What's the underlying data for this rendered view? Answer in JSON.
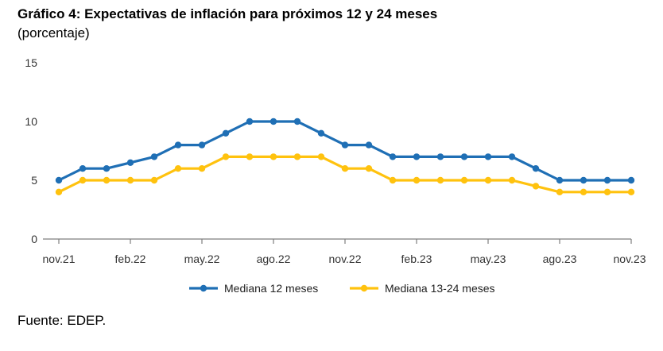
{
  "title": "Gráfico 4: Expectativas de inflación para próximos 12 y 24 meses",
  "subtitle": "(porcentaje)",
  "source": "Fuente: EDEP.",
  "colors": {
    "series1": "#1F6FB5",
    "series2": "#FFC20E",
    "axis": "#7F7F7F"
  },
  "chart_data": {
    "type": "line",
    "title": "Gráfico 4: Expectativas de inflación para próximos 12 y 24 meses",
    "ylabel": "(porcentaje)",
    "xlabel": "",
    "ylim": [
      0,
      15
    ],
    "yticks": [
      0,
      5,
      10,
      15
    ],
    "grid": false,
    "legend_position": "bottom",
    "x_tick_labels": [
      "nov.21",
      "feb.22",
      "may.22",
      "ago.22",
      "nov.22",
      "feb.23",
      "may.23",
      "ago.23",
      "nov.23"
    ],
    "x_tick_index": [
      0,
      3,
      6,
      9,
      12,
      15,
      18,
      21,
      24
    ],
    "categories": [
      "nov.21",
      "dic.21",
      "ene.22",
      "feb.22",
      "mar.22",
      "abr.22",
      "may.22",
      "jun.22",
      "jul.22",
      "ago.22",
      "sep.22",
      "oct.22",
      "nov.22",
      "dic.22",
      "ene.23",
      "feb.23",
      "mar.23",
      "abr.23",
      "may.23",
      "jun.23",
      "jul.23",
      "ago.23",
      "sep.23",
      "oct.23",
      "nov.23"
    ],
    "series": [
      {
        "name": "Mediana 12 meses",
        "values": [
          5,
          6,
          6,
          6.5,
          7,
          8,
          8,
          9,
          10,
          10,
          10,
          9,
          8,
          8,
          7,
          7,
          7,
          7,
          7,
          7,
          6,
          5,
          5,
          5,
          5
        ]
      },
      {
        "name": "Mediana 13-24 meses",
        "values": [
          4,
          5,
          5,
          5,
          5,
          6,
          6,
          7,
          7,
          7,
          7,
          7,
          6,
          6,
          5,
          5,
          5,
          5,
          5,
          5,
          4.5,
          4,
          4,
          4,
          4
        ]
      }
    ]
  }
}
